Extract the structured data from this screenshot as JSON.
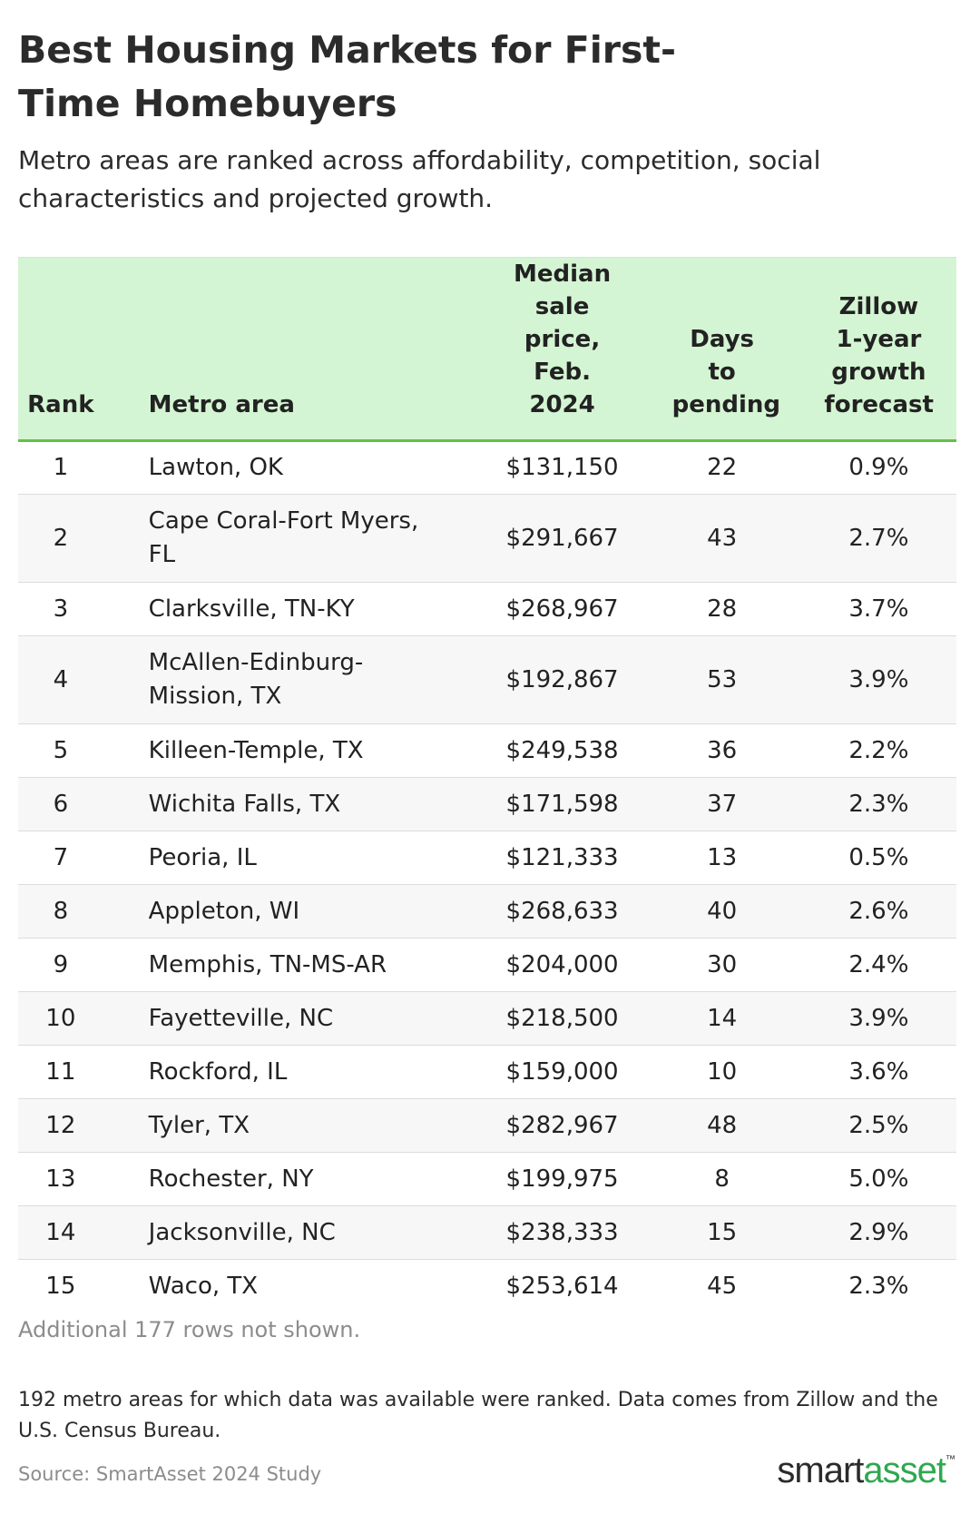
{
  "title": "Best Housing Markets for First-Time Homebuyers",
  "subtitle": "Metro areas are ranked across affordability, competition, social characteristics and projected growth.",
  "chart_data": {
    "type": "table",
    "columns": [
      "Rank",
      "Metro area",
      "Median sale price, Feb. 2024",
      "Days to pending",
      "Zillow 1-year growth forecast"
    ],
    "rows": [
      [
        "1",
        "Lawton, OK",
        "$131,150",
        "22",
        "0.9%"
      ],
      [
        "2",
        "Cape Coral-Fort Myers, FL",
        "$291,667",
        "43",
        "2.7%"
      ],
      [
        "3",
        "Clarksville, TN-KY",
        "$268,967",
        "28",
        "3.7%"
      ],
      [
        "4",
        "McAllen-Edinburg-Mission, TX",
        "$192,867",
        "53",
        "3.9%"
      ],
      [
        "5",
        "Killeen-Temple, TX",
        "$249,538",
        "36",
        "2.2%"
      ],
      [
        "6",
        "Wichita Falls, TX",
        "$171,598",
        "37",
        "2.3%"
      ],
      [
        "7",
        "Peoria, IL",
        "$121,333",
        "13",
        "0.5%"
      ],
      [
        "8",
        "Appleton, WI",
        "$268,633",
        "40",
        "2.6%"
      ],
      [
        "9",
        "Memphis, TN-MS-AR",
        "$204,000",
        "30",
        "2.4%"
      ],
      [
        "10",
        "Fayetteville, NC",
        "$218,500",
        "14",
        "3.9%"
      ],
      [
        "11",
        "Rockford, IL",
        "$159,000",
        "10",
        "3.6%"
      ],
      [
        "12",
        "Tyler, TX",
        "$282,967",
        "48",
        "2.5%"
      ],
      [
        "13",
        "Rochester, NY",
        "$199,975",
        "8",
        "5.0%"
      ],
      [
        "14",
        "Jacksonville, NC",
        "$238,333",
        "15",
        "2.9%"
      ],
      [
        "15",
        "Waco, TX",
        "$253,614",
        "45",
        "2.3%"
      ]
    ]
  },
  "rows_note": "Additional 177 rows not shown.",
  "footnote": "192 metro areas for which data was available were ranked. Data comes from Zillow and the U.S. Census Bureau.",
  "source": "Source: SmartAsset 2024 Study",
  "logo": {
    "part1": "smart",
    "part2": "asset",
    "mark": "™"
  },
  "colors": {
    "header_bg": "#d4f5d3",
    "header_rule": "#63c244",
    "logo_accent": "#2fa84f"
  }
}
